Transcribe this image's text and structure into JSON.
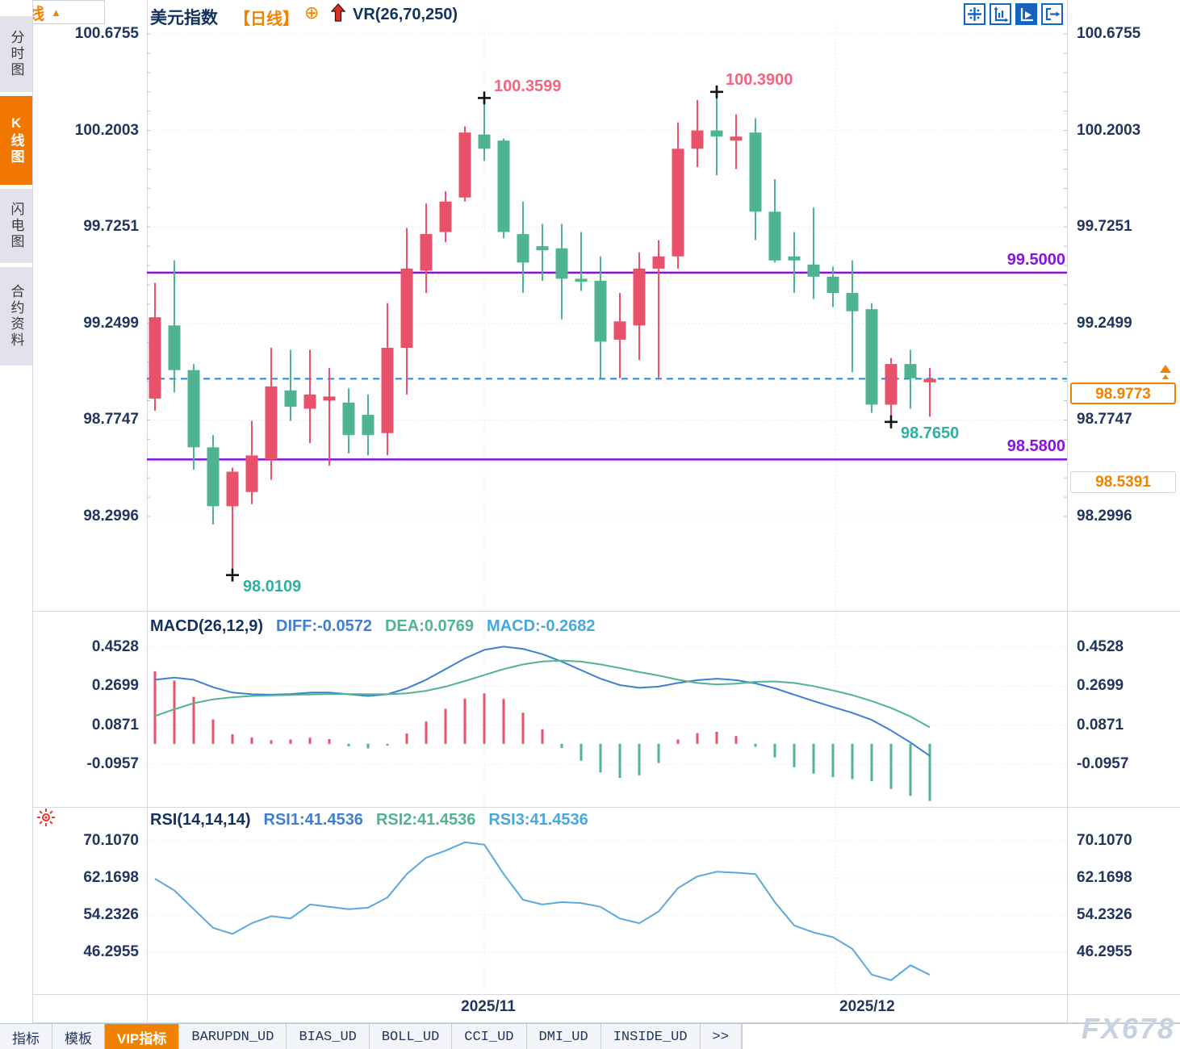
{
  "header": {
    "symbol": "美元指数",
    "period_tag": "【日线】",
    "add_icon": "⊕",
    "indicator_label": "VR(26,70,250)",
    "toolbar_icons": [
      "move-crosshair-icon",
      "axis-scale-icon",
      "auto-scale-icon",
      "exit-right-icon"
    ]
  },
  "sidebar": {
    "items": [
      {
        "name": "sidebar-item-time-chart",
        "label": "分时图",
        "active": false
      },
      {
        "name": "sidebar-item-kline-chart",
        "label": "K线图",
        "active": true
      },
      {
        "name": "sidebar-item-flash-chart",
        "label": "闪电图",
        "active": false
      },
      {
        "name": "sidebar-item-contract-info",
        "label": "合约资料",
        "active": false
      }
    ]
  },
  "colors": {
    "up_red": "#E9516B",
    "down_green": "#4FB591",
    "accent_orange": "#F08200",
    "purple_level": "#8A12E0",
    "dashed_blue": "#1E88E5",
    "diff_blue": "#3F7FD0",
    "dea_green": "#4FB591",
    "macd_cyan": "#45A9DE",
    "rsi_blue": "#5BA8DC",
    "axis_text": "#22355C",
    "pink_label": "#F2647F",
    "teal_label": "#2FAF9F"
  },
  "main_chart": {
    "y_axis_labels": [
      "100.6755",
      "100.2003",
      "99.7251",
      "99.2499",
      "98.7747",
      "98.2996"
    ],
    "upper_level_label": "99.5000",
    "lower_level_label": "98.5800",
    "current_price": "98.9773",
    "secondary_price": "98.5391",
    "high1_label": "100.3599",
    "high2_label": "100.3900",
    "low1_label": "98.0109",
    "low2_label": "98.7650"
  },
  "macd_panel": {
    "title": "MACD(26,12,9)",
    "diff_label": "DIFF:-0.0572",
    "dea_label": "DEA:0.0769",
    "macd_label": "MACD:-0.2682",
    "y_axis_labels": [
      "0.4528",
      "0.2699",
      "0.0871",
      "-0.0957"
    ]
  },
  "rsi_panel": {
    "title": "RSI(14,14,14)",
    "rsi1_label": "RSI1:41.4536",
    "rsi2_label": "RSI2:41.4536",
    "rsi3_label": "RSI3:41.4536",
    "y_axis_labels": [
      "70.1070",
      "62.1698",
      "54.2326",
      "46.2955"
    ]
  },
  "x_axis": {
    "date_labels": [
      "2025/11",
      "2025/12"
    ]
  },
  "period_button": {
    "label": "日线",
    "arrow": "▲"
  },
  "bottom_tabs": {
    "items": [
      {
        "name": "tab-indicator",
        "label": "指标",
        "cn": true,
        "active": false
      },
      {
        "name": "tab-template",
        "label": "模板",
        "cn": true,
        "active": false
      },
      {
        "name": "tab-vip-indicator",
        "label": "VIP指标",
        "cn": true,
        "active": true
      },
      {
        "name": "tab-barupdn",
        "label": "BARUPDN_UD",
        "cn": false,
        "active": false
      },
      {
        "name": "tab-bias",
        "label": "BIAS_UD",
        "cn": false,
        "active": false
      },
      {
        "name": "tab-boll",
        "label": "BOLL_UD",
        "cn": false,
        "active": false
      },
      {
        "name": "tab-cci",
        "label": "CCI_UD",
        "cn": false,
        "active": false
      },
      {
        "name": "tab-dmi",
        "label": "DMI_UD",
        "cn": false,
        "active": false
      },
      {
        "name": "tab-inside",
        "label": "INSIDE_UD",
        "cn": false,
        "active": false
      },
      {
        "name": "tab-more",
        "label": ">>",
        "cn": false,
        "active": false
      }
    ]
  },
  "watermark": "FX678",
  "chart_data": [
    {
      "type": "candlestick",
      "title": "美元指数 日线",
      "convention": "red=up green=down (CN)",
      "ylim": [
        98.06,
        100.72
      ],
      "y_ticks": [
        100.6755,
        100.2003,
        99.7251,
        99.2499,
        98.7747,
        98.2996
      ],
      "levels": {
        "resistance": 99.5,
        "support": 98.58,
        "last": 98.9773,
        "secondary": 98.5391
      },
      "x_gridline_dates": [
        "2025/11",
        "2025/12"
      ],
      "ohlc": [
        [
          98.88,
          99.45,
          98.82,
          99.28
        ],
        [
          99.24,
          99.56,
          98.91,
          99.02
        ],
        [
          99.02,
          99.05,
          98.53,
          98.64
        ],
        [
          98.64,
          98.7,
          98.26,
          98.35
        ],
        [
          98.35,
          98.54,
          98.011,
          98.52
        ],
        [
          98.42,
          98.77,
          98.36,
          98.6
        ],
        [
          98.58,
          99.13,
          98.48,
          98.94
        ],
        [
          98.92,
          99.12,
          98.77,
          98.84
        ],
        [
          98.83,
          99.12,
          98.66,
          98.9
        ],
        [
          98.87,
          99.03,
          98.55,
          98.89
        ],
        [
          98.86,
          98.93,
          98.61,
          98.7
        ],
        [
          98.8,
          98.9,
          98.6,
          98.7
        ],
        [
          98.71,
          99.35,
          98.6,
          99.13
        ],
        [
          99.13,
          99.72,
          98.9,
          99.52
        ],
        [
          99.51,
          99.84,
          99.4,
          99.69
        ],
        [
          99.7,
          99.9,
          99.65,
          99.85
        ],
        [
          99.87,
          100.22,
          99.85,
          100.19
        ],
        [
          100.18,
          100.3599,
          100.05,
          100.11
        ],
        [
          100.15,
          100.16,
          99.67,
          99.7
        ],
        [
          99.69,
          99.85,
          99.4,
          99.55
        ],
        [
          99.63,
          99.74,
          99.46,
          99.61
        ],
        [
          99.62,
          99.74,
          99.27,
          99.47
        ],
        [
          99.47,
          99.7,
          99.41,
          99.455
        ],
        [
          99.46,
          99.58,
          98.98,
          99.16
        ],
        [
          99.17,
          99.4,
          98.98,
          99.26
        ],
        [
          99.24,
          99.6,
          99.07,
          99.52
        ],
        [
          99.52,
          99.66,
          98.98,
          99.58
        ],
        [
          99.58,
          100.24,
          99.52,
          100.11
        ],
        [
          100.11,
          100.35,
          100.02,
          100.2
        ],
        [
          100.2,
          100.39,
          99.98,
          100.17
        ],
        [
          100.15,
          100.28,
          100.01,
          100.17
        ],
        [
          100.19,
          100.26,
          99.66,
          99.8
        ],
        [
          99.8,
          99.96,
          99.55,
          99.56
        ],
        [
          99.58,
          99.7,
          99.4,
          99.56
        ],
        [
          99.54,
          99.82,
          99.37,
          99.48
        ],
        [
          99.48,
          99.53,
          99.33,
          99.4
        ],
        [
          99.4,
          99.56,
          99.01,
          99.31
        ],
        [
          99.32,
          99.35,
          98.81,
          98.85
        ],
        [
          98.85,
          99.08,
          98.765,
          99.05
        ],
        [
          99.05,
          99.12,
          98.83,
          98.98
        ],
        [
          98.96,
          99.03,
          98.79,
          98.9773
        ]
      ],
      "annotations": [
        {
          "index": 17,
          "type": "high",
          "value": 100.3599
        },
        {
          "index": 29,
          "type": "high",
          "value": 100.39
        },
        {
          "index": 4,
          "type": "low",
          "value": 98.0109
        },
        {
          "index": 38,
          "type": "low",
          "value": 98.765
        }
      ]
    },
    {
      "type": "macd",
      "params": "(26,12,9)",
      "y_ticks": [
        0.4528,
        0.2699,
        0.0871,
        -0.0957
      ],
      "diff": [
        0.3,
        0.31,
        0.3,
        0.265,
        0.24,
        0.232,
        0.23,
        0.233,
        0.24,
        0.24,
        0.232,
        0.224,
        0.232,
        0.26,
        0.3,
        0.35,
        0.4,
        0.44,
        0.455,
        0.445,
        0.42,
        0.385,
        0.345,
        0.305,
        0.275,
        0.262,
        0.268,
        0.285,
        0.298,
        0.305,
        0.298,
        0.283,
        0.26,
        0.23,
        0.2,
        0.172,
        0.145,
        0.112,
        0.062,
        0.006,
        -0.0572
      ],
      "dea": [
        0.13,
        0.162,
        0.19,
        0.208,
        0.218,
        0.224,
        0.227,
        0.229,
        0.231,
        0.233,
        0.233,
        0.232,
        0.232,
        0.236,
        0.248,
        0.268,
        0.294,
        0.322,
        0.35,
        0.372,
        0.386,
        0.39,
        0.385,
        0.372,
        0.355,
        0.336,
        0.32,
        0.3,
        0.285,
        0.278,
        0.282,
        0.29,
        0.292,
        0.285,
        0.27,
        0.25,
        0.228,
        0.2,
        0.168,
        0.128,
        0.0769
      ],
      "hist": [
        0.34,
        0.296,
        0.22,
        0.114,
        0.044,
        0.03,
        0.016,
        0.02,
        0.028,
        0.022,
        -0.012,
        -0.022,
        -0.008,
        0.048,
        0.104,
        0.164,
        0.212,
        0.236,
        0.21,
        0.146,
        0.068,
        -0.02,
        -0.08,
        -0.134,
        -0.16,
        -0.148,
        -0.09,
        0.02,
        0.05,
        0.056,
        0.036,
        -0.014,
        -0.064,
        -0.11,
        -0.14,
        -0.156,
        -0.166,
        -0.176,
        -0.212,
        -0.244,
        -0.2682
      ],
      "last": {
        "diff": -0.0572,
        "dea": 0.0769,
        "macd": -0.2682
      }
    },
    {
      "type": "line",
      "name": "RSI(14,14,14)",
      "y_ticks": [
        70.107,
        62.1698,
        54.2326,
        46.2955
      ],
      "rsi": [
        62.0,
        59.5,
        55.5,
        51.5,
        50.2,
        52.5,
        54.0,
        53.5,
        56.5,
        56.0,
        55.5,
        55.8,
        58.0,
        63.0,
        66.5,
        68.0,
        69.8,
        69.3,
        63.0,
        57.5,
        56.5,
        57.0,
        56.8,
        56.0,
        53.5,
        52.5,
        55.0,
        60.0,
        62.5,
        63.5,
        63.3,
        63.0,
        57.0,
        52.0,
        50.5,
        49.5,
        47.0,
        41.5,
        40.3,
        43.5,
        41.4536
      ],
      "last": {
        "rsi1": 41.4536,
        "rsi2": 41.4536,
        "rsi3": 41.4536
      }
    }
  ]
}
